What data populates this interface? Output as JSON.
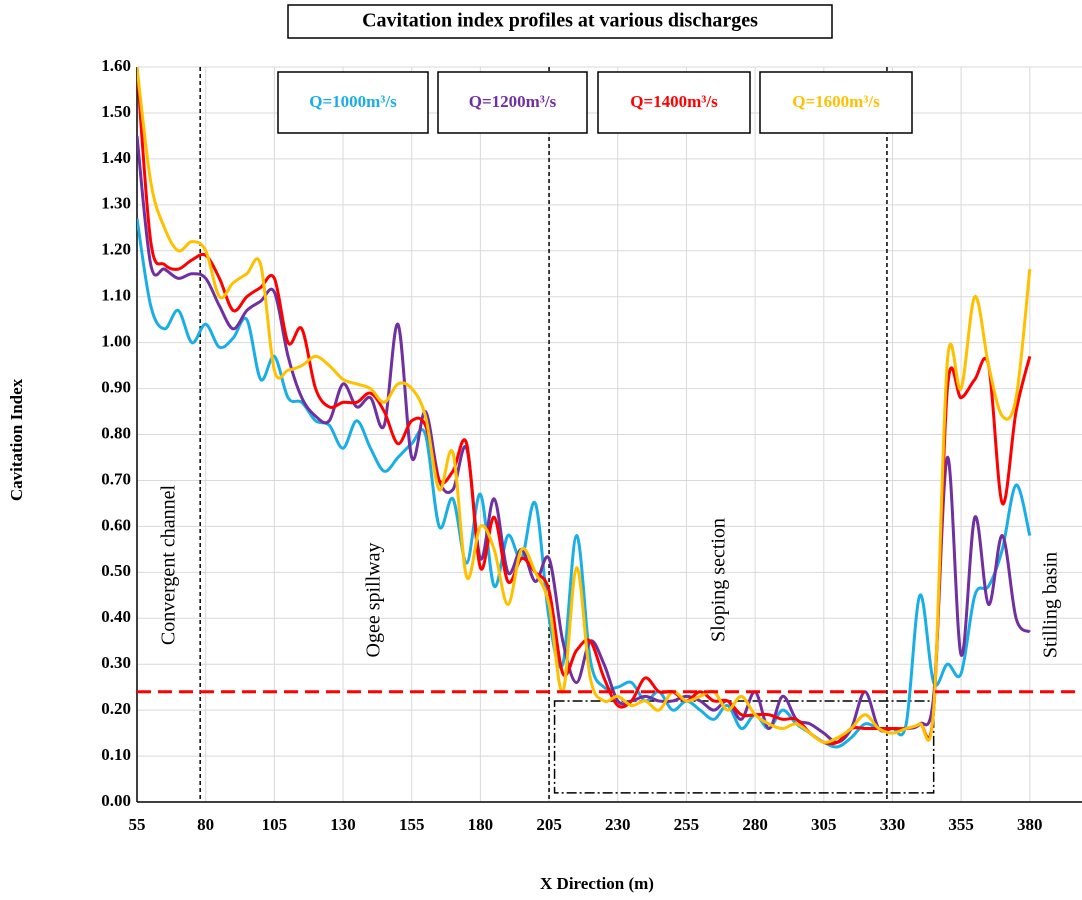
{
  "chart_data": {
    "type": "line",
    "title": "Cavitation index profiles at various discharges",
    "x_label": "X Direction (m)",
    "y_label": "Cavitation Index",
    "annotations": [
      "Convergent channel",
      "Ogee spillway",
      "Sloping section",
      "Stilling basin"
    ],
    "xlim": [
      55,
      399
    ],
    "ylim": [
      0,
      1.6
    ],
    "xticks": [
      55,
      80,
      105,
      130,
      155,
      180,
      205,
      230,
      255,
      280,
      305,
      330,
      355,
      380
    ],
    "yticks": [
      {
        "value": 0,
        "label": "0.00"
      },
      {
        "value": 0.1,
        "label": "0.10"
      },
      {
        "value": 0.2,
        "label": "0.20"
      },
      {
        "value": 0.3,
        "label": "0.30"
      },
      {
        "value": 0.4,
        "label": "0.40"
      },
      {
        "value": 0.5,
        "label": "0.50"
      },
      {
        "value": 0.6,
        "label": "0.60"
      },
      {
        "value": 0.7,
        "label": "0.70"
      },
      {
        "value": 0.8,
        "label": "0.80"
      },
      {
        "value": 0.9,
        "label": "0.90"
      },
      {
        "value": 1.0,
        "label": "1.00"
      },
      {
        "value": 1.1,
        "label": "1.10"
      },
      {
        "value": 1.2,
        "label": "1.20"
      },
      {
        "value": 1.3,
        "label": "1.30"
      },
      {
        "value": 1.4,
        "label": "1.40"
      },
      {
        "value": 1.5,
        "label": "1.50"
      },
      {
        "value": 1.6,
        "label": "1.60"
      }
    ],
    "grid": true,
    "section_lines_x": [
      78,
      205,
      328
    ],
    "threshold_y": 0.24,
    "threshold_color": "#ff0000",
    "box": {
      "x": [
        207,
        345
      ],
      "y": [
        0.02,
        0.22
      ]
    },
    "x": [
      55,
      60,
      65,
      70,
      75,
      80,
      85,
      90,
      95,
      100,
      105,
      110,
      115,
      120,
      125,
      130,
      135,
      140,
      145,
      150,
      155,
      160,
      165,
      170,
      175,
      180,
      185,
      190,
      195,
      200,
      205,
      210,
      215,
      220,
      225,
      230,
      235,
      240,
      245,
      250,
      255,
      260,
      265,
      270,
      275,
      280,
      285,
      290,
      295,
      300,
      305,
      310,
      315,
      320,
      325,
      330,
      335,
      340,
      345,
      350,
      355,
      360,
      365,
      370,
      375,
      380
    ],
    "series": [
      {
        "name": "Q=1000m³/s",
        "color": "#1aaee6",
        "values": [
          1.27,
          1.08,
          1.03,
          1.07,
          1.0,
          1.04,
          0.99,
          1.01,
          1.05,
          0.92,
          0.97,
          0.88,
          0.87,
          0.83,
          0.82,
          0.77,
          0.83,
          0.77,
          0.72,
          0.75,
          0.78,
          0.8,
          0.6,
          0.66,
          0.52,
          0.67,
          0.47,
          0.58,
          0.53,
          0.65,
          0.4,
          0.3,
          0.58,
          0.31,
          0.25,
          0.25,
          0.26,
          0.22,
          0.24,
          0.2,
          0.22,
          0.2,
          0.18,
          0.21,
          0.16,
          0.19,
          0.16,
          0.2,
          0.17,
          0.15,
          0.13,
          0.12,
          0.14,
          0.17,
          0.16,
          0.16,
          0.17,
          0.45,
          0.26,
          0.3,
          0.28,
          0.45,
          0.47,
          0.55,
          0.69,
          0.58
        ]
      },
      {
        "name": "Q=1200m³/s",
        "color": "#7030a0",
        "values": [
          1.45,
          1.17,
          1.16,
          1.14,
          1.15,
          1.14,
          1.08,
          1.03,
          1.07,
          1.09,
          1.11,
          0.97,
          0.88,
          0.84,
          0.83,
          0.91,
          0.86,
          0.88,
          0.82,
          1.04,
          0.75,
          0.85,
          0.7,
          0.68,
          0.77,
          0.53,
          0.66,
          0.5,
          0.55,
          0.48,
          0.53,
          0.35,
          0.26,
          0.35,
          0.3,
          0.22,
          0.22,
          0.23,
          0.22,
          0.22,
          0.23,
          0.22,
          0.2,
          0.22,
          0.18,
          0.24,
          0.16,
          0.23,
          0.18,
          0.17,
          0.15,
          0.13,
          0.16,
          0.24,
          0.16,
          0.16,
          0.16,
          0.17,
          0.23,
          0.75,
          0.32,
          0.62,
          0.43,
          0.58,
          0.4,
          0.37
        ]
      },
      {
        "name": "Q=1400m³/s",
        "color": "#ff0000",
        "values": [
          1.6,
          1.22,
          1.17,
          1.16,
          1.18,
          1.19,
          1.14,
          1.07,
          1.1,
          1.12,
          1.14,
          1.0,
          1.03,
          0.9,
          0.86,
          0.87,
          0.87,
          0.89,
          0.85,
          0.78,
          0.83,
          0.82,
          0.7,
          0.72,
          0.78,
          0.51,
          0.62,
          0.48,
          0.53,
          0.5,
          0.46,
          0.28,
          0.33,
          0.35,
          0.27,
          0.21,
          0.22,
          0.27,
          0.24,
          0.24,
          0.22,
          0.24,
          0.22,
          0.22,
          0.19,
          0.19,
          0.19,
          0.18,
          0.18,
          0.15,
          0.13,
          0.13,
          0.16,
          0.16,
          0.16,
          0.16,
          0.16,
          0.17,
          0.2,
          0.9,
          0.88,
          0.92,
          0.95,
          0.65,
          0.85,
          0.97
        ]
      },
      {
        "name": "Q=1600m³/s",
        "color": "#ffc000",
        "values": [
          1.6,
          1.35,
          1.25,
          1.2,
          1.22,
          1.2,
          1.1,
          1.13,
          1.15,
          1.17,
          0.94,
          0.94,
          0.95,
          0.97,
          0.95,
          0.92,
          0.91,
          0.9,
          0.87,
          0.91,
          0.9,
          0.84,
          0.68,
          0.76,
          0.49,
          0.6,
          0.55,
          0.43,
          0.55,
          0.5,
          0.43,
          0.24,
          0.51,
          0.27,
          0.22,
          0.23,
          0.21,
          0.22,
          0.2,
          0.24,
          0.22,
          0.23,
          0.24,
          0.2,
          0.23,
          0.19,
          0.17,
          0.16,
          0.17,
          0.15,
          0.13,
          0.14,
          0.16,
          0.19,
          0.16,
          0.15,
          0.16,
          0.17,
          0.2,
          0.96,
          0.9,
          1.1,
          0.95,
          0.84,
          0.88,
          1.16
        ]
      }
    ]
  }
}
